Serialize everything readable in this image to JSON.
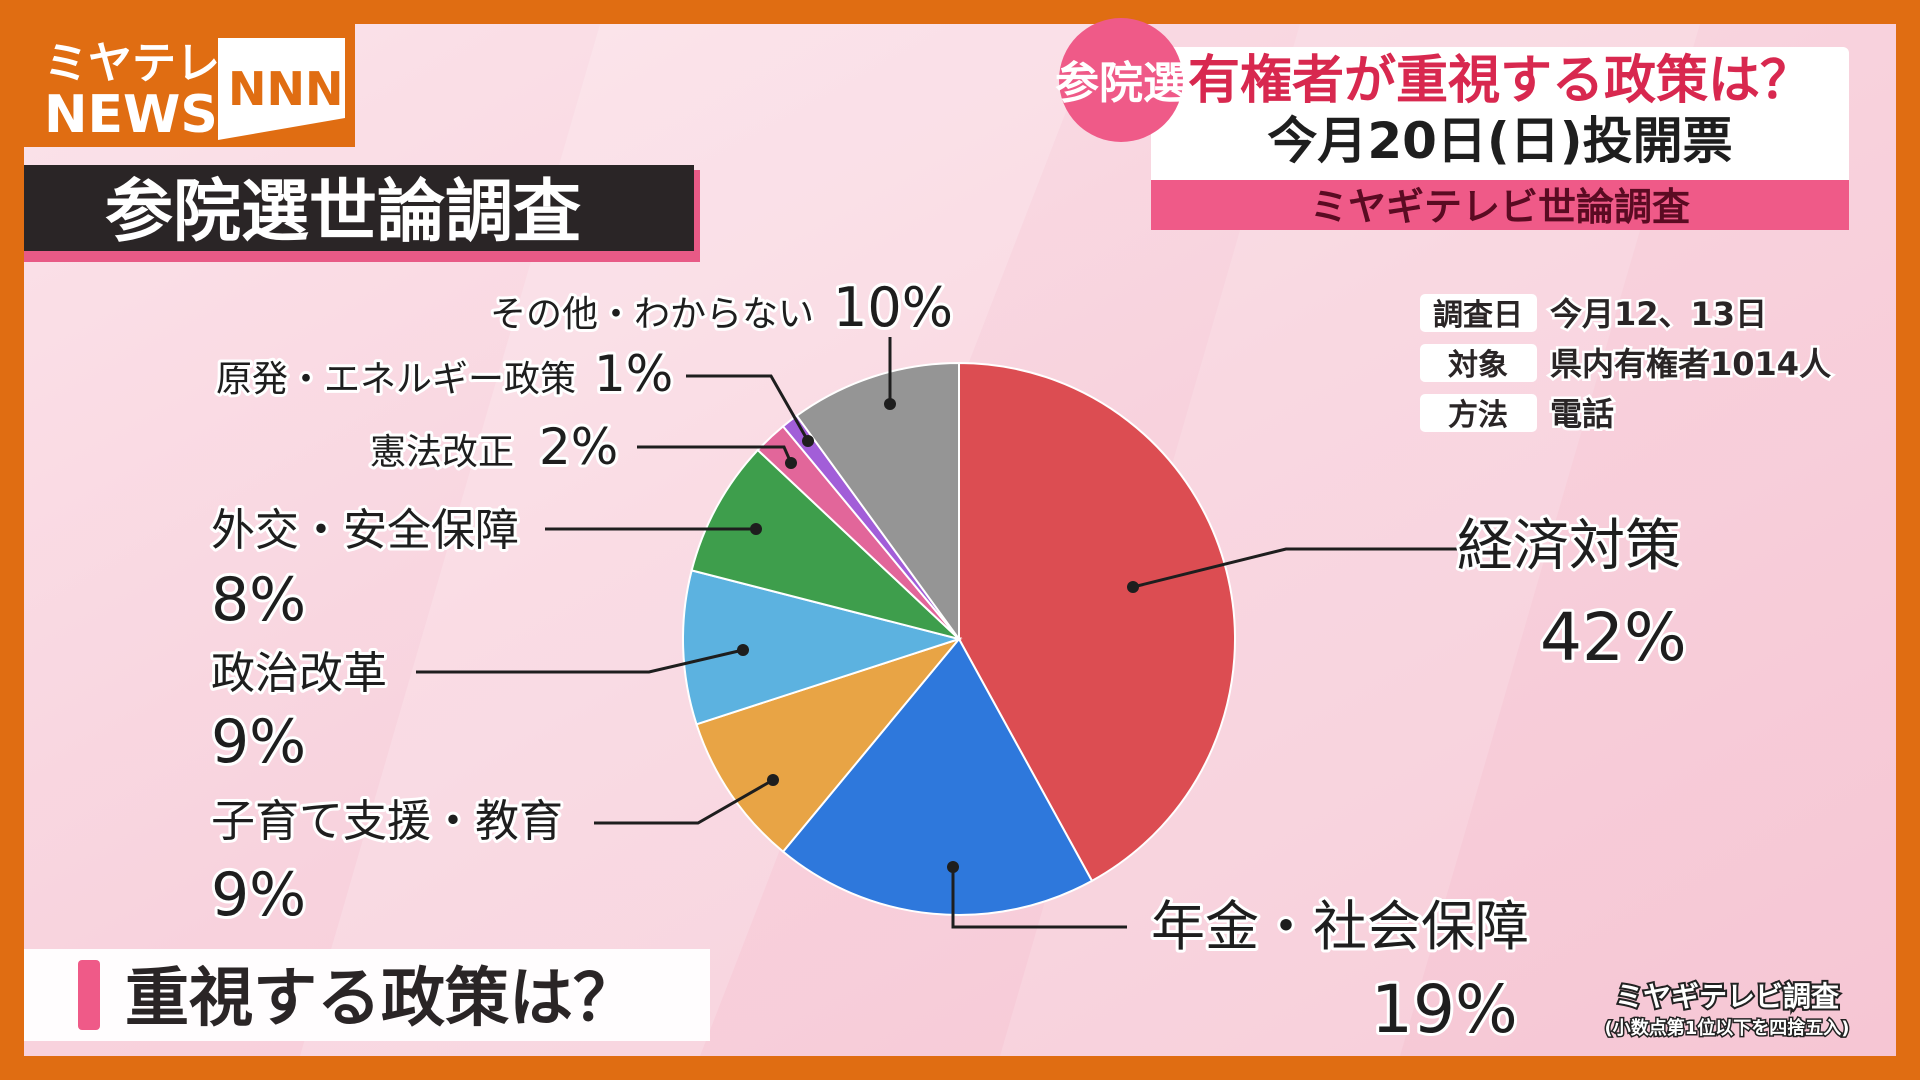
{
  "logo": {
    "line1": "ミヤテレ",
    "line2": "NEWS",
    "brand": "NNN"
  },
  "header": {
    "badge": "参院選",
    "headline": "有権者が重視する政策は？",
    "subline": "今月20日(日)投開票",
    "band": "ミヤギテレビ世論調査"
  },
  "survey_title": "参院選世論調査",
  "survey_info": [
    {
      "label": "調査日",
      "value": "今月12、13日"
    },
    {
      "label": "対象",
      "value": "県内有権者1014人"
    },
    {
      "label": "方法",
      "value": "電話"
    }
  ],
  "chart_data": {
    "type": "pie",
    "title": "重視する政策は？",
    "categories": [
      "経済対策",
      "年金・社会保障",
      "子育て支援・教育",
      "政治改革",
      "外交・安全保障",
      "憲法改正",
      "原発・エネルギー政策",
      "その他・わからない"
    ],
    "values": [
      42,
      19,
      9,
      9,
      8,
      2,
      1,
      10
    ],
    "value_labels": [
      "42%",
      "19%",
      "9%",
      "9%",
      "8%",
      "2%",
      "1%",
      "10%"
    ],
    "colors": [
      "#dc4d52",
      "#2e78dc",
      "#e8a445",
      "#5cb2e0",
      "#3e9e4c",
      "#e2669a",
      "#a25ed8",
      "#959595"
    ]
  },
  "footer": {
    "source": "ミヤギテレビ調査",
    "note": "(小数点第1位以下を四捨五入)"
  }
}
